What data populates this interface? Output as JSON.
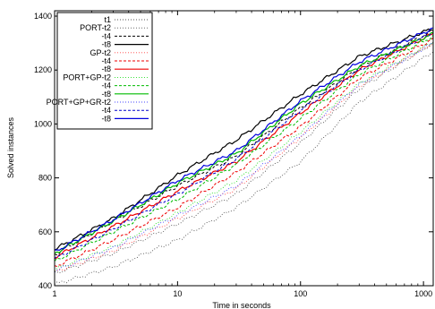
{
  "chart_data": {
    "type": "line",
    "title": "",
    "xlabel": "Time in seconds",
    "ylabel": "Solved instances",
    "xscale": "log",
    "xlim": [
      1,
      1200
    ],
    "ylim": [
      400,
      1420
    ],
    "xticks": [
      {
        "value": 1,
        "label": "1"
      },
      {
        "value": 10,
        "label": "10"
      },
      {
        "value": 100,
        "label": "100"
      },
      {
        "value": 1000,
        "label": "1000"
      }
    ],
    "yticks": [
      {
        "value": 400,
        "label": "400"
      },
      {
        "value": 600,
        "label": "600"
      },
      {
        "value": 800,
        "label": "800"
      },
      {
        "value": 1000,
        "label": "1000"
      },
      {
        "value": 1200,
        "label": "1200"
      },
      {
        "value": 1400,
        "label": "1400"
      }
    ],
    "grid": false,
    "legend_position": "top-left",
    "x_points": [
      1,
      3,
      10,
      30,
      100,
      300,
      1200
    ],
    "series": [
      {
        "name": "t1",
        "color": "#555555",
        "dash": "1,2",
        "width": 0.9,
        "values": [
          405,
          470,
          570,
          690,
          860,
          1080,
          1270
        ]
      },
      {
        "name": "PORT-t2",
        "color": "#555555",
        "dash": "1,2",
        "width": 0.9,
        "values": [
          445,
          520,
          630,
          740,
          930,
          1130,
          1300
        ]
      },
      {
        "name": "-t4",
        "color": "#000000",
        "dash": "3,2",
        "width": 1,
        "values": [
          515,
          640,
          770,
          880,
          1060,
          1210,
          1345
        ]
      },
      {
        "name": "-t8",
        "color": "#000000",
        "dash": "",
        "width": 1.2,
        "values": [
          535,
          650,
          810,
          940,
          1110,
          1250,
          1355
        ]
      },
      {
        "name": "GP-t2",
        "color": "#ff4444",
        "dash": "1,2",
        "width": 0.9,
        "values": [
          450,
          530,
          650,
          760,
          950,
          1140,
          1300
        ]
      },
      {
        "name": "-t4",
        "color": "#ee0000",
        "dash": "3,2",
        "width": 1,
        "values": [
          470,
          570,
          690,
          820,
          990,
          1170,
          1315
        ]
      },
      {
        "name": "-t8",
        "color": "#ee0000",
        "dash": "",
        "width": 1.2,
        "values": [
          505,
          620,
          750,
          860,
          1040,
          1200,
          1335
        ]
      },
      {
        "name": "PORT+GP-t2",
        "color": "#22dd22",
        "dash": "1,2",
        "width": 0.9,
        "values": [
          460,
          545,
          670,
          790,
          970,
          1150,
          1305
        ]
      },
      {
        "name": "-t4",
        "color": "#00bb00",
        "dash": "3,2",
        "width": 1,
        "values": [
          490,
          600,
          720,
          850,
          1020,
          1185,
          1325
        ]
      },
      {
        "name": "-t8",
        "color": "#00bb00",
        "dash": "",
        "width": 1.2,
        "values": [
          520,
          640,
          780,
          890,
          1075,
          1215,
          1335
        ]
      },
      {
        "name": "PORT+GP+GR-t2",
        "color": "#4444ff",
        "dash": "1,2",
        "width": 0.9,
        "values": [
          455,
          540,
          660,
          770,
          955,
          1145,
          1300
        ]
      },
      {
        "name": "-t4",
        "color": "#0000cc",
        "dash": "3,2",
        "width": 1,
        "values": [
          500,
          610,
          740,
          870,
          1050,
          1200,
          1340
        ]
      },
      {
        "name": "-t8",
        "color": "#0000dd",
        "dash": "",
        "width": 1.2,
        "values": [
          525,
          645,
          790,
          900,
          1085,
          1230,
          1355
        ]
      }
    ]
  }
}
